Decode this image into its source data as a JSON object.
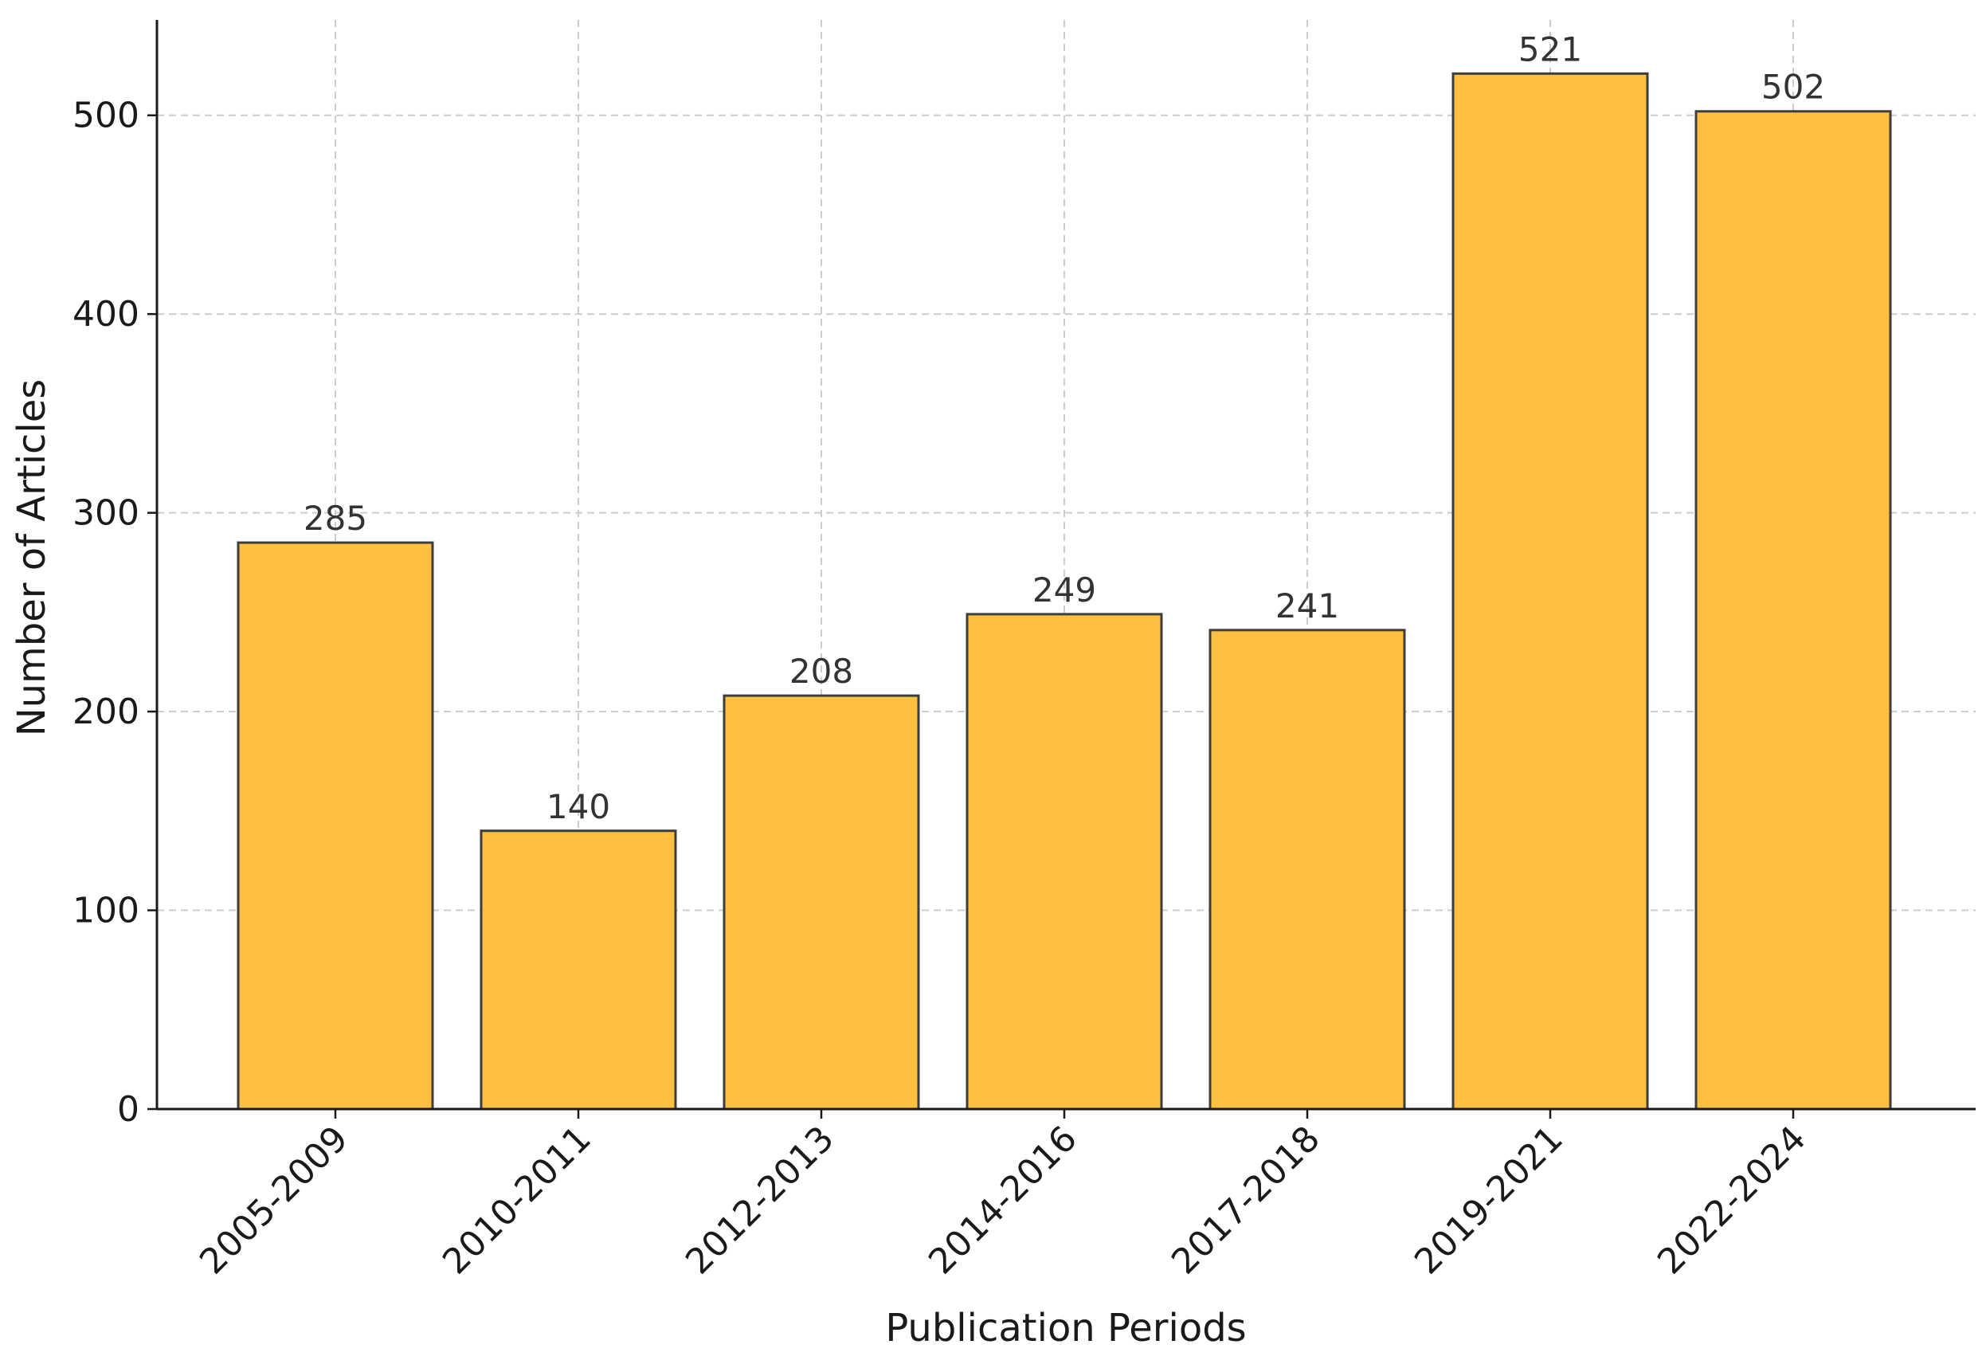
{
  "chart_data": {
    "type": "bar",
    "title": "",
    "xlabel": "Publication Periods",
    "ylabel": "Number of Articles",
    "categories": [
      "2005-2009",
      "2010-2011",
      "2012-2013",
      "2014-2016",
      "2017-2018",
      "2019-2021",
      "2022-2024"
    ],
    "values": [
      285,
      140,
      208,
      249,
      241,
      521,
      502
    ],
    "data_labels": [
      "285",
      "140",
      "208",
      "249",
      "241",
      "521",
      "502"
    ],
    "ylim": [
      0,
      548
    ],
    "yticks": [
      0,
      100,
      200,
      300,
      400,
      500
    ],
    "ytick_labels": [
      "0",
      "100",
      "200",
      "300",
      "400",
      "500"
    ],
    "grid": true,
    "legend": "none",
    "bar_color": "#FFBF40",
    "bar_edge_color": "#3d3d3d"
  }
}
